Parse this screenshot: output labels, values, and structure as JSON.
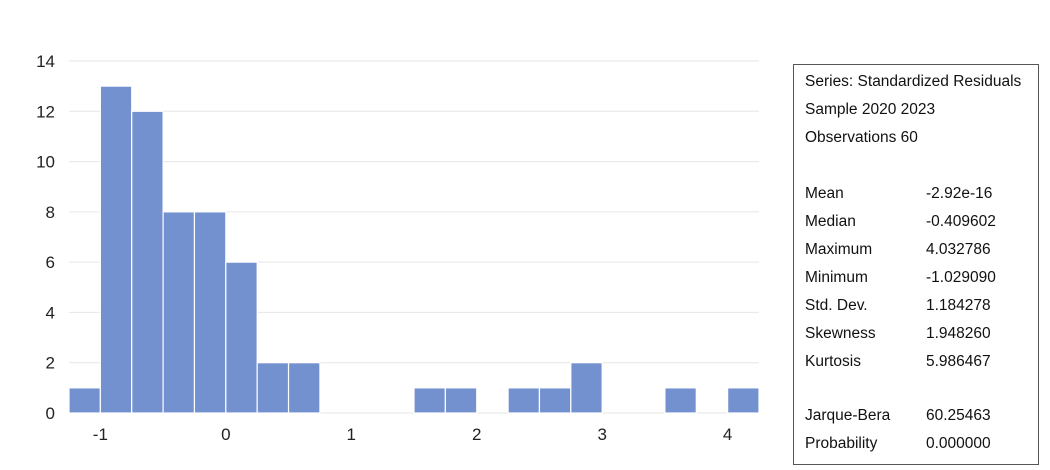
{
  "chart_data": {
    "type": "bar",
    "bin_width": 0.25,
    "bins": [
      {
        "x0": -1.25,
        "x1": -1.0,
        "count": 1
      },
      {
        "x0": -1.0,
        "x1": -0.75,
        "count": 13
      },
      {
        "x0": -0.75,
        "x1": -0.5,
        "count": 12
      },
      {
        "x0": -0.5,
        "x1": -0.25,
        "count": 8
      },
      {
        "x0": -0.25,
        "x1": 0.0,
        "count": 8
      },
      {
        "x0": 0.0,
        "x1": 0.25,
        "count": 6
      },
      {
        "x0": 0.25,
        "x1": 0.5,
        "count": 2
      },
      {
        "x0": 0.5,
        "x1": 0.75,
        "count": 2
      },
      {
        "x0": 1.5,
        "x1": 1.75,
        "count": 1
      },
      {
        "x0": 1.75,
        "x1": 2.0,
        "count": 1
      },
      {
        "x0": 2.25,
        "x1": 2.5,
        "count": 1
      },
      {
        "x0": 2.5,
        "x1": 2.75,
        "count": 1
      },
      {
        "x0": 2.75,
        "x1": 3.0,
        "count": 2
      },
      {
        "x0": 3.5,
        "x1": 3.75,
        "count": 1
      },
      {
        "x0": 4.0,
        "x1": 4.25,
        "count": 1
      }
    ],
    "xlim": [
      -1.25,
      4.25
    ],
    "ylim": [
      0,
      14
    ],
    "xticks": [
      -1,
      0,
      1,
      2,
      3,
      4
    ],
    "xtick_labels": [
      "-1",
      "0",
      "1",
      "2",
      "3",
      "4"
    ],
    "yticks": [
      0,
      2,
      4,
      6,
      8,
      10,
      12,
      14
    ],
    "ytick_labels": [
      "0",
      "2",
      "4",
      "6",
      "8",
      "10",
      "12",
      "14"
    ],
    "grid": "horizontal",
    "bar_color": "#7390cf",
    "grid_color": "#e6e6e6"
  },
  "stats_box": {
    "series_line": "Series: Standardized Residuals",
    "sample_line": "Sample 2020 2023",
    "obs_line": "Observations 60",
    "stats": [
      {
        "name": "Mean",
        "value": "-2.92e-16"
      },
      {
        "name": "Median",
        "value": "-0.409602"
      },
      {
        "name": "Maximum",
        "value": "4.032786"
      },
      {
        "name": "Minimum",
        "value": "-1.029090"
      },
      {
        "name": "Std. Dev.",
        "value": "1.184278"
      },
      {
        "name": "Skewness",
        "value": "1.948260"
      },
      {
        "name": "Kurtosis",
        "value": "5.986467"
      }
    ],
    "tests": [
      {
        "name": "Jarque-Bera",
        "value": "60.25463"
      },
      {
        "name": "Probability",
        "value": "0.000000"
      }
    ]
  }
}
